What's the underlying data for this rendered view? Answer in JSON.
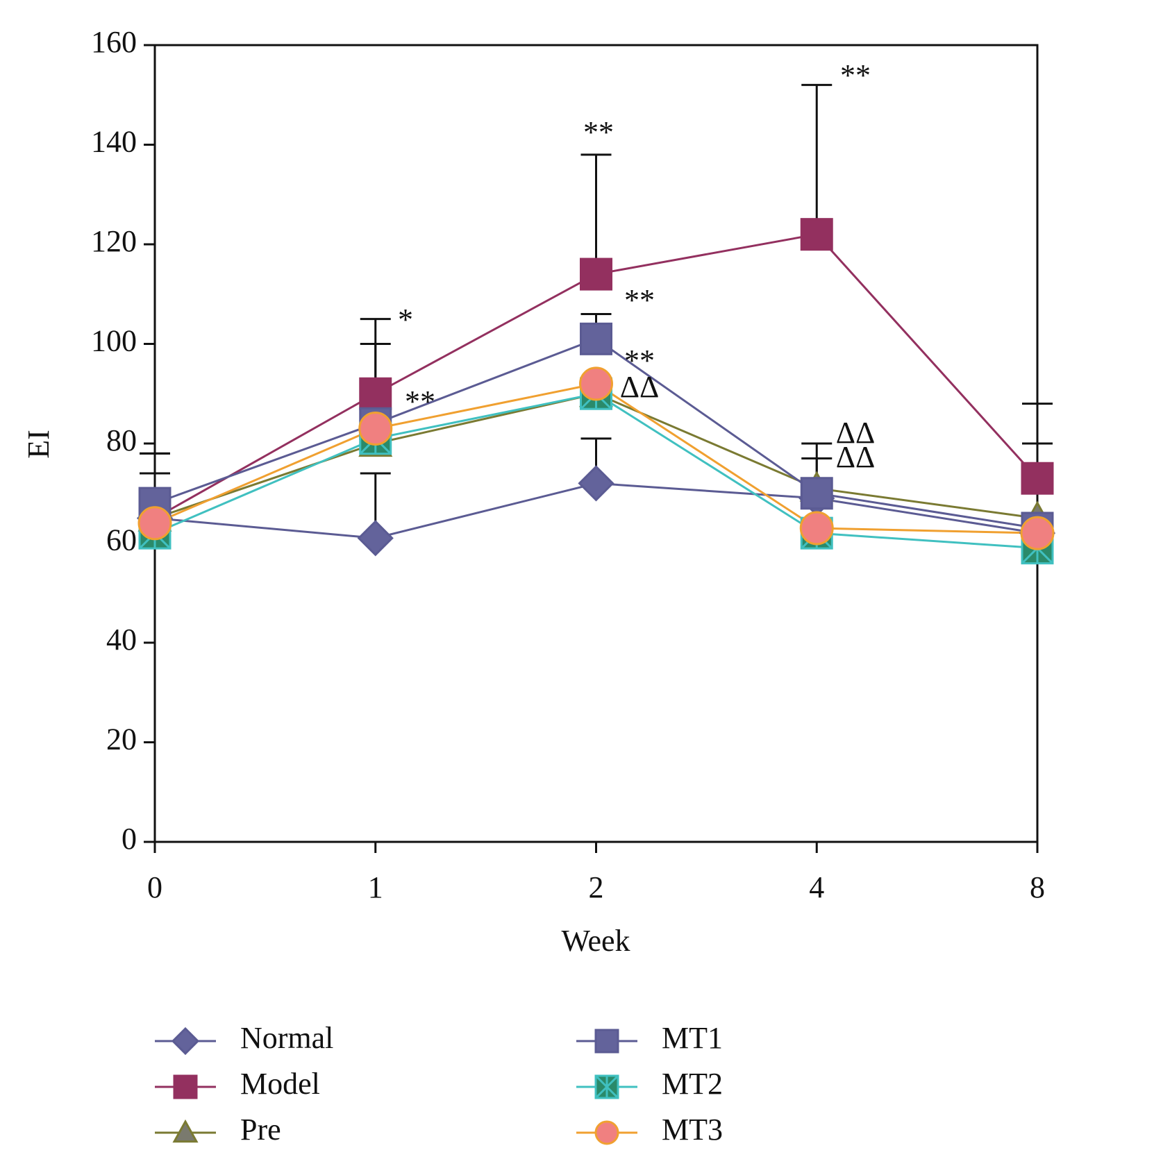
{
  "chart_data": {
    "type": "line",
    "x_label": "Week",
    "y_label": "EI",
    "categories": [
      "0",
      "1",
      "2",
      "4",
      "8"
    ],
    "ylim": [
      0,
      160
    ],
    "yticks": [
      0,
      20,
      40,
      60,
      80,
      100,
      120,
      140,
      160
    ],
    "series": [
      {
        "name": "Normal",
        "color": "#5b5b93",
        "marker": "diamond",
        "marker_color": "#63639b",
        "values": [
          65,
          61,
          72,
          69,
          62
        ],
        "errors": [
          9,
          13,
          9,
          null,
          null
        ]
      },
      {
        "name": "Model",
        "color": "#93305f",
        "marker": "square",
        "marker_color": "#93305f",
        "values": [
          65,
          90,
          114,
          122,
          73
        ],
        "errors": [
          13,
          15,
          24,
          30,
          15
        ]
      },
      {
        "name": "Pre",
        "color": "#7a7a32",
        "marker": "triangle",
        "marker_color": "#7a7a6e",
        "values": [
          65,
          80,
          90,
          71,
          65
        ],
        "errors": [
          null,
          null,
          null,
          6,
          null
        ]
      },
      {
        "name": "MT1",
        "color": "#5b5b93",
        "marker": "square",
        "marker_color": "#63639b",
        "values": [
          68,
          84,
          101,
          70,
          63
        ],
        "errors": [
          10,
          16,
          5,
          10,
          17
        ]
      },
      {
        "name": "MT2",
        "color": "#40c0c0",
        "marker": "xsquare",
        "marker_color": "#2a8a6a",
        "values": [
          62,
          81,
          90,
          62,
          59
        ]
      },
      {
        "name": "MT3",
        "color": "#f0a030",
        "marker": "circle",
        "marker_color": "#f08080",
        "values": [
          64,
          83,
          92,
          63,
          62
        ]
      }
    ],
    "annotations": [
      "*",
      "**",
      "**",
      "**",
      "**",
      "**",
      "ΔΔ",
      "ΔΔ",
      "ΔΔ"
    ]
  }
}
